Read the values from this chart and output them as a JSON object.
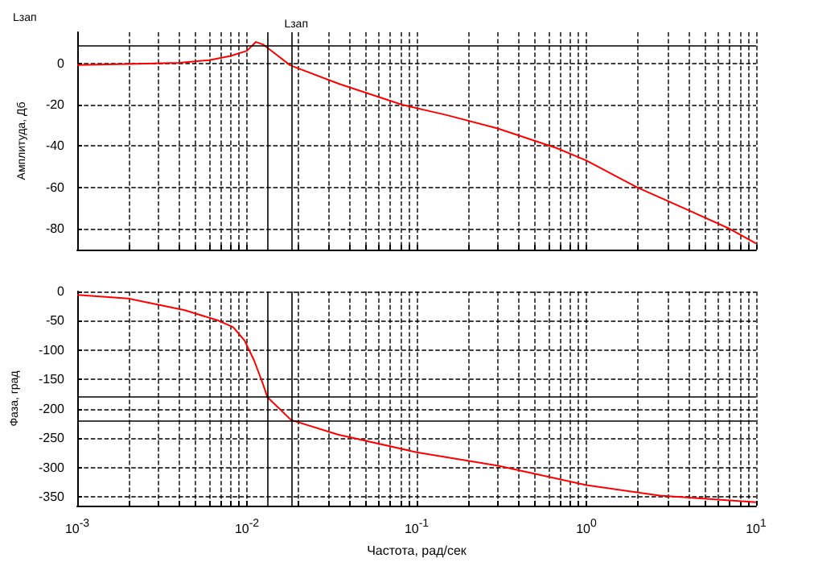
{
  "chart_data": [
    {
      "type": "line",
      "ylabel": "Амплитуда, Дб",
      "annotations": [
        "Lзап",
        {
          "text": "Lзап",
          "x": 0.0113,
          "y": 10.3
        }
      ],
      "series": [
        {
          "color": "#ff0000",
          "x": [
            0.001,
            0.002,
            0.004,
            0.006,
            0.008,
            0.01,
            0.0113,
            0.0125,
            0.015,
            0.018,
            0.035,
            0.082,
            0.15,
            0.3,
            0.67,
            1.0,
            2.0,
            4.0,
            7.0,
            10.0
          ],
          "values": [
            -0.8,
            -0.4,
            0.2,
            1.5,
            3.5,
            6,
            10.3,
            9,
            4,
            -1,
            -10,
            -20,
            -25,
            -31.5,
            -41,
            -47,
            -60,
            -71,
            -80,
            -87
          ]
        }
      ],
      "log": "x",
      "xlim": [
        0.001,
        10
      ],
      "ylim": [
        -90,
        15
      ],
      "yticks": [
        -80,
        -60,
        -40,
        -20,
        0
      ],
      "xticks": [
        {
          "value": 0.001,
          "label": null
        },
        {
          "value": 0.002,
          "label": null
        },
        {
          "value": 0.003,
          "label": null
        },
        {
          "value": 0.004,
          "label": null
        },
        {
          "value": 0.005,
          "label": null
        },
        {
          "value": 0.006,
          "label": null
        },
        {
          "value": 0.007,
          "label": null
        },
        {
          "value": 0.008,
          "label": null
        },
        {
          "value": 0.009,
          "label": null
        },
        {
          "value": 0.01,
          "label": null
        },
        {
          "value": 0.02,
          "label": null
        },
        {
          "value": 0.03,
          "label": null
        },
        {
          "value": 0.04,
          "label": null
        },
        {
          "value": 0.05,
          "label": null
        },
        {
          "value": 0.06,
          "label": null
        },
        {
          "value": 0.07,
          "label": null
        },
        {
          "value": 0.08,
          "label": null
        },
        {
          "value": 0.09,
          "label": null
        },
        {
          "value": 0.1,
          "label": null
        },
        {
          "value": 0.2,
          "label": null
        },
        {
          "value": 0.3,
          "label": null
        },
        {
          "value": 0.4,
          "label": null
        },
        {
          "value": 0.5,
          "label": null
        },
        {
          "value": 0.6,
          "label": null
        },
        {
          "value": 0.7,
          "label": null
        },
        {
          "value": 0.8,
          "label": null
        },
        {
          "value": 0.9,
          "label": null
        },
        {
          "value": 1,
          "label": null
        },
        {
          "value": 2,
          "label": null
        },
        {
          "value": 3,
          "label": null
        },
        {
          "value": 4,
          "label": null
        },
        {
          "value": 5,
          "label": null
        },
        {
          "value": 6,
          "label": null
        },
        {
          "value": 7,
          "label": null
        },
        {
          "value": 8,
          "label": null
        },
        {
          "value": 9,
          "label": null
        },
        {
          "value": 10,
          "label": null
        }
      ],
      "tick_labels": "y",
      "grid": true,
      "line_style": "solid",
      "ref_lines": [
        {
          "axis": "y",
          "value": 8.7,
          "color": "#000000"
        },
        {
          "axis": "x",
          "value": 0.0132,
          "color": "#000000"
        },
        {
          "axis": "x",
          "value": 0.0182,
          "color": "#000000"
        }
      ]
    },
    {
      "type": "line",
      "xlabel": "Частота, рад/сек",
      "ylabel": "Фаза, град",
      "series": [
        {
          "color": "#ff0000",
          "x": [
            0.001,
            0.002,
            0.0043,
            0.0067,
            0.0083,
            0.0097,
            0.011,
            0.0123,
            0.0132,
            0.0182,
            0.0344,
            0.1,
            0.303,
            1.0,
            2.7,
            10.0
          ],
          "values": [
            -6,
            -12,
            -32,
            -49,
            -61,
            -84,
            -117,
            -154,
            -180,
            -219,
            -244,
            -274,
            -297,
            -330,
            -348,
            -359
          ]
        }
      ],
      "log": "x",
      "xlim": [
        0.001,
        10
      ],
      "ylim": [
        -365,
        0
      ],
      "yticks": [
        -350,
        -300,
        -250,
        -200,
        -150,
        -100,
        -50,
        0
      ],
      "xticks": [
        {
          "value": 0.001,
          "label": "10$^{-3}$"
        },
        {
          "value": 0.002,
          "label": null
        },
        {
          "value": 0.003,
          "label": null
        },
        {
          "value": 0.004,
          "label": null
        },
        {
          "value": 0.005,
          "label": null
        },
        {
          "value": 0.006,
          "label": null
        },
        {
          "value": 0.007,
          "label": null
        },
        {
          "value": 0.008,
          "label": null
        },
        {
          "value": 0.009,
          "label": null
        },
        {
          "value": 0.01,
          "label": "10$^{-2}$"
        },
        {
          "value": 0.02,
          "label": null
        },
        {
          "value": 0.03,
          "label": null
        },
        {
          "value": 0.04,
          "label": null
        },
        {
          "value": 0.05,
          "label": null
        },
        {
          "value": 0.06,
          "label": null
        },
        {
          "value": 0.07,
          "label": null
        },
        {
          "value": 0.08,
          "label": null
        },
        {
          "value": 0.09,
          "label": null
        },
        {
          "value": 0.1,
          "label": "10$^{-1}$"
        },
        {
          "value": 0.2,
          "label": null
        },
        {
          "value": 0.3,
          "label": null
        },
        {
          "value": 0.4,
          "label": null
        },
        {
          "value": 0.5,
          "label": null
        },
        {
          "value": 0.6,
          "label": null
        },
        {
          "value": 0.7,
          "label": null
        },
        {
          "value": 0.8,
          "label": null
        },
        {
          "value": 0.9,
          "label": null
        },
        {
          "value": 1,
          "label": "10$^{0}$"
        },
        {
          "value": 2,
          "label": null
        },
        {
          "value": 3,
          "label": null
        },
        {
          "value": 4,
          "label": null
        },
        {
          "value": 5,
          "label": null
        },
        {
          "value": 6,
          "label": null
        },
        {
          "value": 7,
          "label": null
        },
        {
          "value": 8,
          "label": null
        },
        {
          "value": 9,
          "label": null
        },
        {
          "value": 10,
          "label": "10$^{1}$"
        }
      ],
      "grid": true,
      "line_style": "solid",
      "ref_lines": [
        {
          "axis": "y",
          "value": -180,
          "color": "#000000"
        },
        {
          "axis": "y",
          "value": -220,
          "color": "#000000"
        },
        {
          "axis": "x",
          "value": 0.0132,
          "color": "#000000"
        },
        {
          "axis": "x",
          "value": 0.0182,
          "color": "#000000"
        }
      ]
    }
  ]
}
